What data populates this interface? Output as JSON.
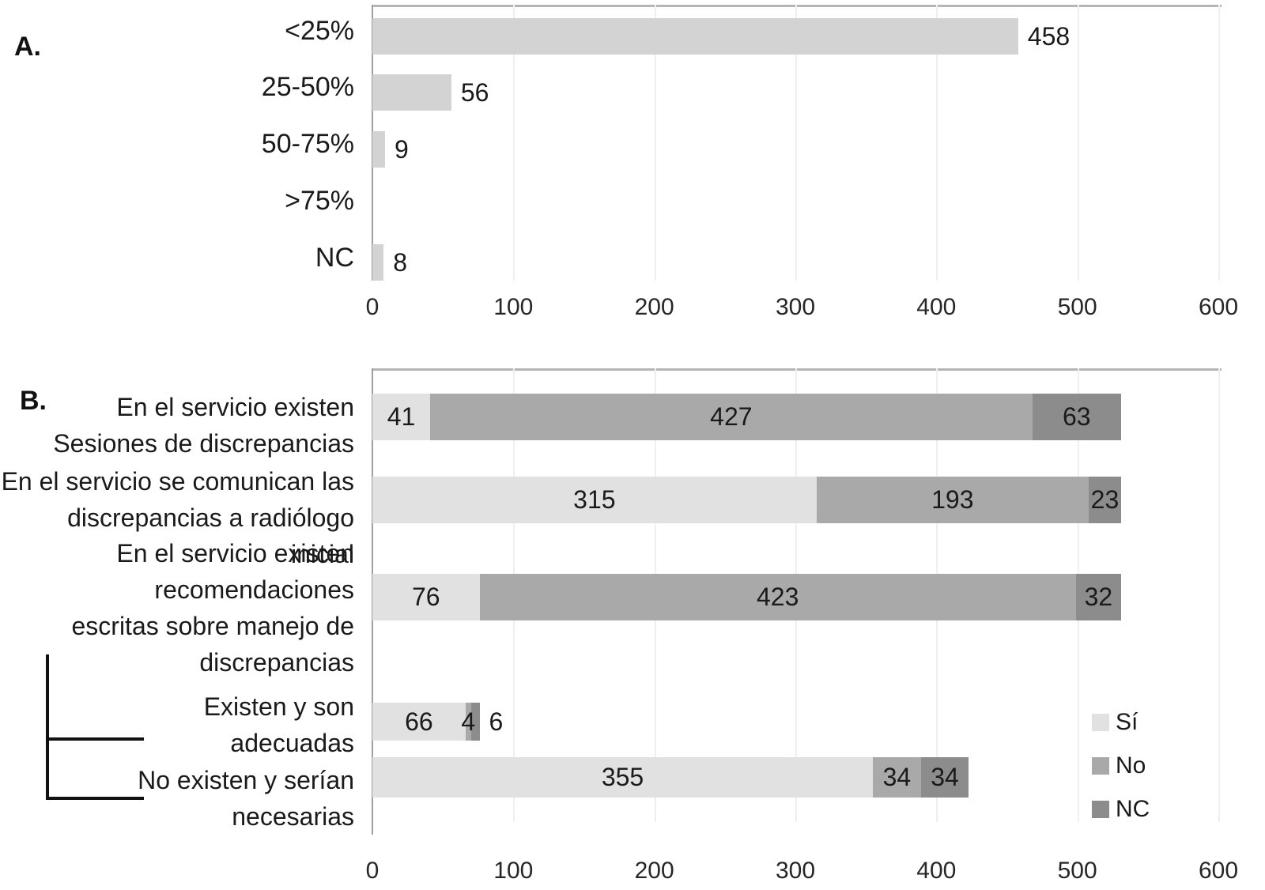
{
  "panels": {
    "a": {
      "letter": "A."
    },
    "b": {
      "letter": "B."
    }
  },
  "colors": {
    "gridline": "#efefef",
    "axis_line": "#9f9f9f",
    "plot_top_border": "#b5b5b5",
    "text": "#1a1a1a",
    "bracket": "#111111"
  },
  "chart_data": [
    {
      "panel": "A",
      "type": "bar",
      "title": "",
      "categories": [
        "<25%",
        "25-50%",
        "50-75%",
        ">75%",
        "NC"
      ],
      "values": [
        458,
        56,
        9,
        0,
        8
      ],
      "bar_color": "#d3d3d3",
      "xlim": [
        0,
        600
      ],
      "xticks": [
        0,
        100,
        200,
        300,
        400,
        500,
        600
      ],
      "grid": true,
      "value_label_style": "outside-right"
    },
    {
      "panel": "B",
      "type": "stacked-bar",
      "title": "",
      "categories": [
        "En el servicio existen\nSesiones de discrepancias",
        "En el servicio se comunican las\ndiscrepancias a radiólogo inicial",
        "En el servicio existen\nrecomendaciones\nescritas sobre manejo de\ndiscrepancias",
        "Existen y son\nadecuadas",
        "No existen y serían\nnecesarias"
      ],
      "series": [
        {
          "name": "Sí",
          "color": "#e1e1e1",
          "values": [
            41,
            315,
            76,
            66,
            355
          ]
        },
        {
          "name": "No",
          "color": "#a9a9a9",
          "values": [
            427,
            193,
            423,
            4,
            34
          ]
        },
        {
          "name": "NC",
          "color": "#8c8c8c",
          "values": [
            63,
            23,
            32,
            6,
            34
          ]
        }
      ],
      "totals": [
        531,
        531,
        531,
        76,
        423
      ],
      "xlim": [
        0,
        600
      ],
      "xticks": [
        0,
        100,
        200,
        300,
        400,
        500,
        600
      ],
      "grid": true,
      "legend": {
        "labels": [
          "Sí",
          "No",
          "NC"
        ],
        "position": "inside-right"
      },
      "value_label_style": "inside-center"
    }
  ]
}
